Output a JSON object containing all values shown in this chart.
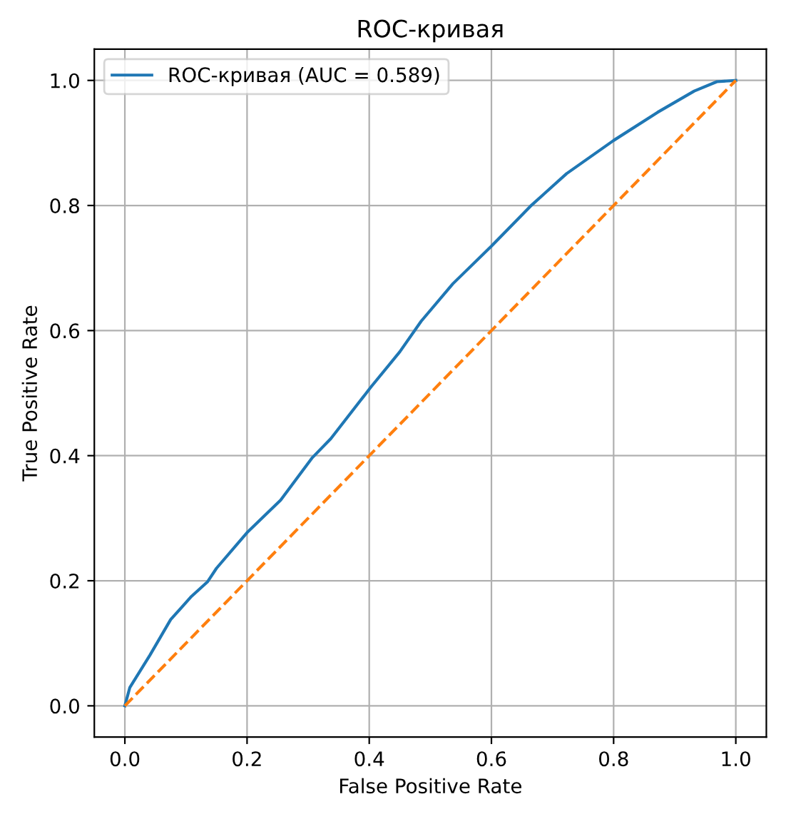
{
  "chart_data": {
    "type": "line",
    "title": "ROC-кривая",
    "xlabel": "False Positive Rate",
    "ylabel": "True Positive Rate",
    "xlim": [
      -0.05,
      1.05
    ],
    "ylim": [
      -0.05,
      1.05
    ],
    "xticks": [
      {
        "value": 0,
        "label": "0.0"
      },
      0.2,
      0.4,
      0.6,
      0.8,
      {
        "value": 1,
        "label": "1.0"
      }
    ],
    "yticks": [
      {
        "value": 0,
        "label": "0.0"
      },
      0.2,
      0.4,
      0.6,
      0.8,
      {
        "value": 1,
        "label": "1.0"
      }
    ],
    "grid": true,
    "legend": "top left",
    "series": [
      {
        "name": "ROC-кривая (AUC = 0.589)",
        "color": "#1f77b4",
        "line_style": "solid",
        "x": [
          0,
          0.008,
          0.041,
          0.075,
          0.109,
          0.135,
          0.15,
          0.2,
          0.255,
          0.307,
          0.337,
          0.403,
          0.45,
          0.485,
          0.537,
          0.6,
          0.664,
          0.723,
          0.8,
          0.872,
          0.932,
          0.969,
          1.0
        ],
        "values": [
          0,
          0.029,
          0.081,
          0.138,
          0.175,
          0.198,
          0.22,
          0.277,
          0.329,
          0.397,
          0.427,
          0.51,
          0.566,
          0.615,
          0.675,
          0.735,
          0.799,
          0.851,
          0.904,
          0.949,
          0.983,
          0.998,
          1.0
        ]
      },
      {
        "color": "#ff7f0e",
        "line_style": "dashed",
        "x": [
          0,
          1
        ],
        "values": [
          0,
          1
        ]
      }
    ]
  }
}
